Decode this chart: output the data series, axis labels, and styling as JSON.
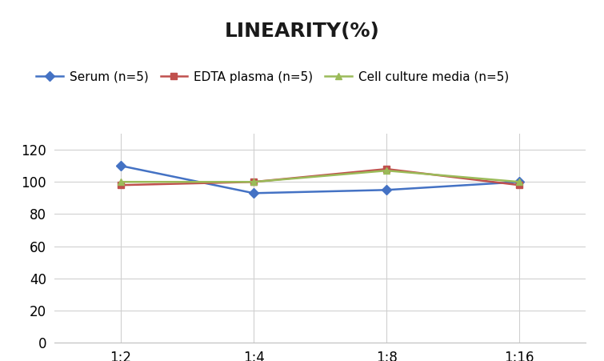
{
  "title": "LINEARITY(%)",
  "x_labels": [
    "1:2",
    "1:4",
    "1:8",
    "1:16"
  ],
  "x_positions": [
    0,
    1,
    2,
    3
  ],
  "series": [
    {
      "label": "Serum (n=5)",
      "values": [
        110,
        93,
        95,
        100
      ],
      "color": "#4472C4",
      "marker": "D",
      "markersize": 6,
      "linewidth": 1.8
    },
    {
      "label": "EDTA plasma (n=5)",
      "values": [
        98,
        100,
        108,
        98
      ],
      "color": "#C0504D",
      "marker": "s",
      "markersize": 6,
      "linewidth": 1.8
    },
    {
      "label": "Cell culture media (n=5)",
      "values": [
        100,
        100,
        107,
        100
      ],
      "color": "#9BBB59",
      "marker": "^",
      "markersize": 6,
      "linewidth": 1.8
    }
  ],
  "ylim": [
    0,
    130
  ],
  "yticks": [
    0,
    20,
    40,
    60,
    80,
    100,
    120
  ],
  "background_color": "#FFFFFF",
  "title_fontsize": 18,
  "legend_fontsize": 11,
  "tick_fontsize": 12,
  "grid_color": "#D0D0D0",
  "grid_linewidth": 0.8
}
